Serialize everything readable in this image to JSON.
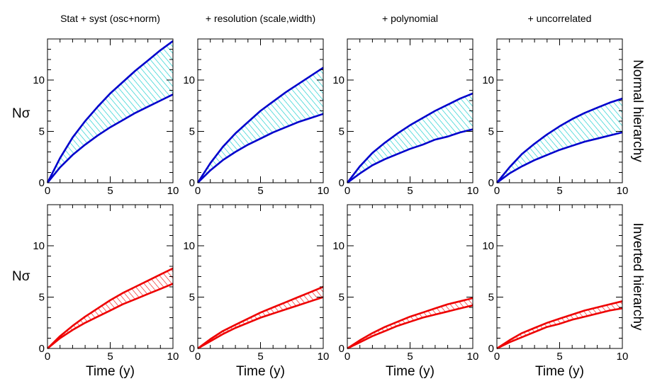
{
  "colors": {
    "normal": "#0000cc",
    "normal_hatch": "#00c8c8",
    "inverted": "#ee0000",
    "inverted_hatch": "#ee0000"
  },
  "chart_data": {
    "type": "area",
    "layout": "2 rows x 4 columns of panels",
    "column_titles": [
      "Stat + syst (osc+norm)",
      "+ resolution (scale,width)",
      "+ polynomial",
      "+ uncorrelated"
    ],
    "row_labels": [
      "Normal hierarchy",
      "Inverted hierarchy"
    ],
    "xlabel": "Time (y)",
    "ylabel": "Nσ",
    "xlim": [
      0,
      10
    ],
    "ylim": [
      0,
      14
    ],
    "x_ticks": [
      0,
      5,
      10
    ],
    "y_ticks": [
      0,
      5,
      10
    ],
    "x": [
      0,
      1,
      2,
      3,
      4,
      5,
      6,
      7,
      8,
      9,
      10
    ],
    "panels": [
      {
        "row": "Normal hierarchy",
        "column": "Stat + syst (osc+norm)",
        "upper": [
          0,
          2.4,
          4.4,
          6.0,
          7.4,
          8.7,
          9.8,
          10.9,
          11.9,
          12.9,
          13.8
        ],
        "lower": [
          0,
          1.5,
          2.7,
          3.7,
          4.6,
          5.4,
          6.1,
          6.8,
          7.4,
          8.0,
          8.6
        ]
      },
      {
        "row": "Normal hierarchy",
        "column": "+ resolution (scale,width)",
        "upper": [
          0,
          1.9,
          3.5,
          4.8,
          5.9,
          7.0,
          7.9,
          8.8,
          9.6,
          10.4,
          11.2
        ],
        "lower": [
          0,
          1.2,
          2.2,
          3.0,
          3.7,
          4.3,
          4.9,
          5.4,
          5.9,
          6.3,
          6.7
        ]
      },
      {
        "row": "Normal hierarchy",
        "column": "+ polynomial",
        "upper": [
          0,
          1.6,
          2.9,
          3.9,
          4.8,
          5.6,
          6.3,
          7.0,
          7.6,
          8.2,
          8.7
        ],
        "lower": [
          0,
          0.9,
          1.7,
          2.3,
          2.8,
          3.3,
          3.7,
          4.2,
          4.5,
          4.9,
          5.2
        ]
      },
      {
        "row": "Normal hierarchy",
        "column": "+ uncorrelated",
        "upper": [
          0,
          1.5,
          2.8,
          3.8,
          4.7,
          5.5,
          6.2,
          6.8,
          7.3,
          7.8,
          8.2
        ],
        "lower": [
          0,
          0.9,
          1.6,
          2.2,
          2.7,
          3.2,
          3.6,
          4.0,
          4.3,
          4.6,
          4.9
        ]
      },
      {
        "row": "Inverted hierarchy",
        "column": "Stat + syst (osc+norm)",
        "upper": [
          0,
          1.2,
          2.2,
          3.1,
          3.9,
          4.7,
          5.4,
          6.0,
          6.6,
          7.2,
          7.8
        ],
        "lower": [
          0,
          1.0,
          1.8,
          2.5,
          3.1,
          3.7,
          4.3,
          4.8,
          5.3,
          5.8,
          6.3
        ]
      },
      {
        "row": "Inverted hierarchy",
        "column": "+ resolution (scale,width)",
        "upper": [
          0,
          0.9,
          1.7,
          2.3,
          2.9,
          3.5,
          4.0,
          4.5,
          5.0,
          5.5,
          6.0
        ],
        "lower": [
          0,
          0.7,
          1.4,
          2.0,
          2.5,
          3.0,
          3.4,
          3.8,
          4.2,
          4.6,
          5.0
        ]
      },
      {
        "row": "Inverted hierarchy",
        "column": "+ polynomial",
        "upper": [
          0,
          0.8,
          1.5,
          2.1,
          2.6,
          3.1,
          3.5,
          3.9,
          4.3,
          4.6,
          4.9
        ],
        "lower": [
          0,
          0.6,
          1.2,
          1.7,
          2.2,
          2.6,
          3.0,
          3.3,
          3.6,
          3.9,
          4.2
        ]
      },
      {
        "row": "Inverted hierarchy",
        "column": "+ uncorrelated",
        "upper": [
          0,
          0.8,
          1.5,
          2.0,
          2.5,
          2.9,
          3.3,
          3.7,
          4.0,
          4.3,
          4.6
        ],
        "lower": [
          0,
          0.6,
          1.1,
          1.6,
          2.1,
          2.4,
          2.8,
          3.1,
          3.4,
          3.7,
          3.9
        ]
      }
    ]
  }
}
